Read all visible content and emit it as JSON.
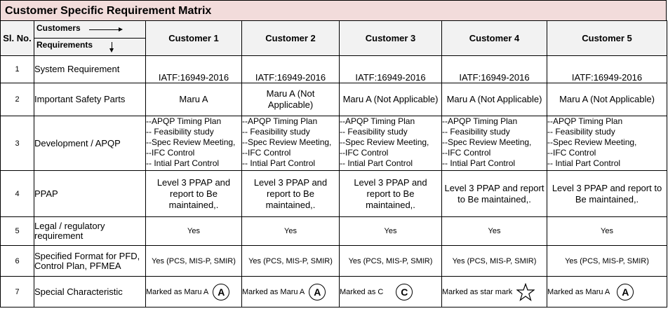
{
  "title": "Customer Specific Requirement Matrix",
  "header": {
    "sl_no": "Sl. No.",
    "customers_label": "Customers",
    "requirements_label": "Requirements",
    "customers": [
      "Customer 1",
      "Customer 2",
      "Customer 3",
      "Customer 4",
      "Customer 5"
    ]
  },
  "rows": [
    {
      "sl": "1",
      "requirement": "System Requirement",
      "values": [
        "IATF:16949-2016",
        "IATF:16949-2016",
        "IATF:16949-2016",
        "IATF:16949-2016",
        "IATF:16949-2016"
      ]
    },
    {
      "sl": "2",
      "requirement": "Important Safety Parts",
      "values": [
        "Maru A",
        "Maru A (Not Applicable)",
        "Maru A (Not Applicable)",
        "Maru A (Not Applicable)",
        "Maru A (Not Applicable)"
      ]
    },
    {
      "sl": "3",
      "requirement": "Development / APQP",
      "apqp_items": [
        "--APQP Timing Plan",
        "-- Feasibility study",
        "--Spec Review Meeting,",
        "--IFC Control",
        "-- Intial Part Control"
      ]
    },
    {
      "sl": "4",
      "requirement": "PPAP",
      "values": [
        "Level 3 PPAP and report to Be maintained,.",
        "Level 3 PPAP   and report to Be maintained,.",
        "Level 3 PPAP   and report to Be maintained,.",
        "Level 3 PPAP   and report to Be maintained,.",
        "Level 3 PPAP   and report to Be maintained,."
      ]
    },
    {
      "sl": "5",
      "requirement": "Legal / regulatory requirement",
      "values": [
        "Yes",
        "Yes",
        "Yes",
        "Yes",
        "Yes"
      ]
    },
    {
      "sl": "6",
      "requirement": "Specified Format for PFD, Control Plan, PFMEA",
      "values": [
        "Yes (PCS, MIS-P, SMIR)",
        "Yes (PCS, MIS-P, SMIR)",
        "Yes (PCS, MIS-P, SMIR)",
        "Yes (PCS, MIS-P, SMIR)",
        "Yes (PCS, MIS-P, SMIR)"
      ]
    },
    {
      "sl": "7",
      "requirement": "Special Characteristic",
      "special": [
        {
          "text": "Marked as Maru A",
          "mark": "A",
          "icon": "circle-a-icon"
        },
        {
          "text": "Marked as Maru A",
          "mark": "A",
          "icon": "circle-a-icon"
        },
        {
          "text": "Marked as C",
          "mark": "C",
          "icon": "circle-c-icon"
        },
        {
          "text": "Marked as star mark",
          "mark": "",
          "icon": "star-icon"
        },
        {
          "text": "Marked as Maru A",
          "mark": "A",
          "icon": "circle-a-icon"
        }
      ]
    }
  ]
}
